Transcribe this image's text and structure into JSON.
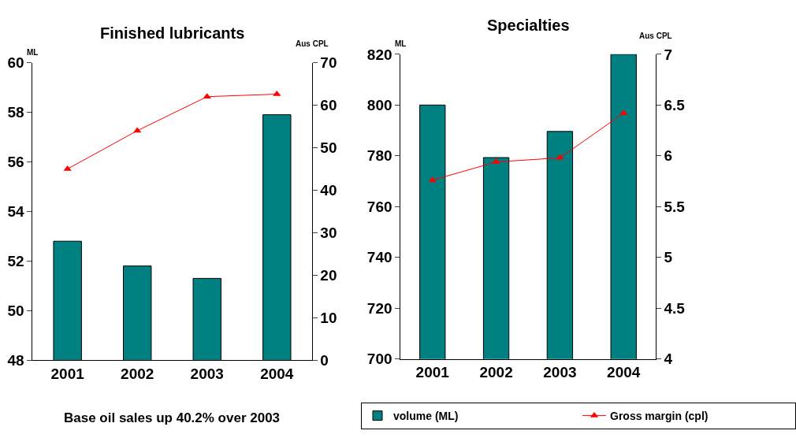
{
  "chart_data": [
    {
      "type": "bar",
      "title": "Finished lubricants",
      "ylabel": "ML",
      "y2label": "Aus CPL",
      "categories": [
        "2001",
        "2002",
        "2003",
        "2004"
      ],
      "series": [
        {
          "color": "#008080",
          "values": [
            52.8,
            51.8,
            51.3,
            57.9
          ]
        },
        {
          "type": "line",
          "axis": "y2",
          "color": "#ff0000",
          "values": [
            45,
            54,
            62,
            62.6
          ]
        }
      ],
      "ylim": [
        48,
        60
      ],
      "yticks": [
        48,
        50,
        52,
        54,
        56,
        58,
        60
      ],
      "y2lim": [
        0,
        70
      ],
      "y2ticks": [
        0,
        10,
        20,
        30,
        40,
        50,
        60,
        70
      ],
      "marker": "triangle",
      "legend": false,
      "annotations": [
        "Base oil sales up 40.2% over 2003"
      ]
    },
    {
      "type": "bar",
      "title": "Specialties",
      "ylabel": "ML",
      "y2label": "Aus CPL",
      "categories": [
        "2001",
        "2002",
        "2003",
        "2004"
      ],
      "series": [
        {
          "name": "volume (ML)",
          "color": "#008080",
          "values": [
            800,
            779.3,
            789.6,
            820
          ]
        },
        {
          "type": "line",
          "axis": "y2",
          "name": "Gross margin (cpl)",
          "color": "#ff0000",
          "values": [
            5.76,
            5.94,
            5.98,
            6.42
          ]
        }
      ],
      "ylim": [
        700,
        820
      ],
      "yticks": [
        700,
        720,
        740,
        760,
        780,
        800,
        820
      ],
      "y2lim": [
        4,
        7
      ],
      "y2ticks": [
        4,
        4.5,
        5,
        5.5,
        6,
        6.5,
        7
      ],
      "marker": "triangle",
      "legend": "bottom"
    }
  ]
}
